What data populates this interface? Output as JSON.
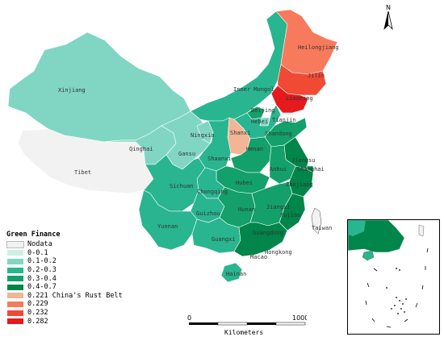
{
  "legend": {
    "title": "Green Finance",
    "items": [
      {
        "label": "Nodata",
        "color": "#f2f2f2"
      },
      {
        "label": "0-0.1",
        "color": "#cdf0e6"
      },
      {
        "label": "0.1-0.2",
        "color": "#80d6c3"
      },
      {
        "label": "0.2-0.3",
        "color": "#29b58f"
      },
      {
        "label": "0.3-0.4",
        "color": "#13a06a"
      },
      {
        "label": "0.4-0.7",
        "color": "#00854a"
      },
      {
        "label": "0.221 China's Rust Belt",
        "color": "#f2b595"
      },
      {
        "label": "0.229",
        "color": "#f87a5c"
      },
      {
        "label": "0.232",
        "color": "#f04a34"
      },
      {
        "label": "0.282",
        "color": "#e41a1c"
      }
    ]
  },
  "provinces": {
    "xinjiang": "Xinjiang",
    "tibet": "Tibet",
    "qinghai": "Qinghai",
    "gansu": "Gansu",
    "inner_mongol": "Inner Mongol",
    "heilongjiang": "Heilongjiang",
    "jilin": "Jilin",
    "liaoning": "Liaoning",
    "beijing": "Beijing",
    "hebei": "Hebei",
    "tianjin": "Tianjin",
    "shanxi": "Shanxi",
    "ningxia": "Ningxia",
    "shandong": "Shandong",
    "henan": "Henan",
    "shaanxi": "Shaanxi",
    "jiangsu": "Jiangsu",
    "anhui": "Anhui",
    "shanghai": "Shanghai",
    "sichuan": "Sichuan",
    "chongqing": "Chongqing",
    "hubei": "Hubei",
    "zhejiang": "Zhejiang",
    "guizhou": "Guizhou",
    "hunan": "Hunan",
    "jiangxi": "Jiangxi",
    "fujian": "Fujian",
    "yunnan": "Yunnan",
    "guangxi": "Guangxi",
    "guangdong": "Guangdong",
    "taiwan": "Taiwan",
    "hongkong": "Hongkong",
    "macao": "Macao",
    "hainan": "Hainan"
  },
  "scale": {
    "start": "0",
    "end": "1000",
    "unit": "Kilometers"
  },
  "north": {
    "label": "N"
  },
  "colors": {
    "nodata": "#f2f2f2",
    "c01": "#80d6c3",
    "c02": "#29b58f",
    "c03": "#13a06a",
    "c04": "#00854a",
    "rust221": "#f2b595",
    "rust229": "#f87a5c",
    "rust232": "#f04a34",
    "rust282": "#e41a1c"
  }
}
